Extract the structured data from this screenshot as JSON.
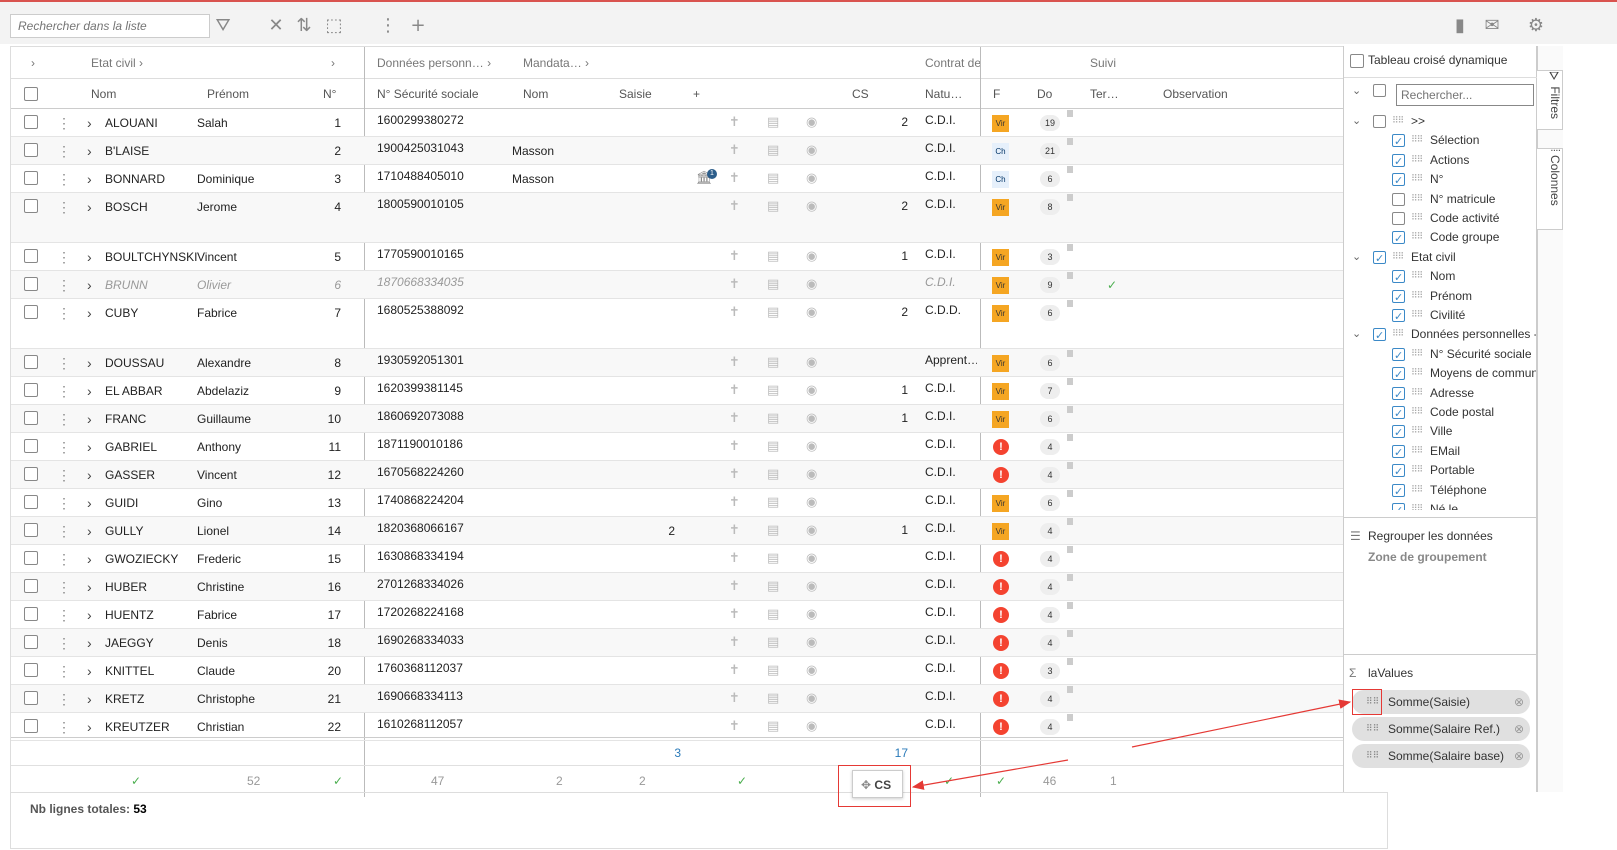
{
  "toolbar": {
    "search_placeholder": "Rechercher dans la liste"
  },
  "group_headers": {
    "etat_civil": "Etat civil",
    "donnees": "Données personn…",
    "mandata": "Mandata…",
    "contrat": "Contrat de",
    "suivi": "Suivi"
  },
  "columns": {
    "nom": "Nom",
    "prenom": "Prénom",
    "num": "N°",
    "nss": "N° Sécurité sociale",
    "nom2": "Nom",
    "saisie": "Saisie",
    "plus": "+",
    "cs": "CS",
    "nature": "Natu…",
    "f": "F",
    "do": "Do",
    "ter": "Ter…",
    "obs": "Observation"
  },
  "rows": [
    {
      "nom": "ALOUANI",
      "prenom": "Salah",
      "num": "1",
      "nss": "1600299380272",
      "mand": "",
      "saisie": "",
      "cs": "2",
      "nat": "C.D.I.",
      "f": "Vir",
      "do": "19",
      "suivi": ""
    },
    {
      "nom": "B'LAISE",
      "prenom": "",
      "num": "2",
      "nss": "1900425031043",
      "mand": "Masson",
      "saisie": "",
      "cs": "",
      "nat": "C.D.I.",
      "f": "Ch",
      "do": "21",
      "suivi": ""
    },
    {
      "nom": "BONNARD",
      "prenom": "Dominique",
      "num": "3",
      "nss": "1710488405010",
      "mand": "Masson",
      "saisie": "",
      "cs": "",
      "nat": "C.D.I.",
      "f": "Ch",
      "do": "6",
      "suivi": "",
      "bank": "1"
    },
    {
      "nom": "BOSCH",
      "prenom": "Jerome",
      "num": "4",
      "nss": "1800590010105",
      "mand": "",
      "saisie": "",
      "cs": "2",
      "nat": "C.D.I.",
      "f": "Vir",
      "do": "8",
      "suivi": ""
    },
    {
      "nom": "BOULTCHYNSKI",
      "prenom": "Vincent",
      "num": "5",
      "nss": "1770590010165",
      "mand": "",
      "saisie": "",
      "cs": "1",
      "nat": "C.D.I.",
      "f": "Vir",
      "do": "3",
      "suivi": ""
    },
    {
      "nom": "BRUNN",
      "prenom": "Olivier",
      "num": "6",
      "nss": "1870668334035",
      "mand": "",
      "saisie": "",
      "cs": "",
      "nat": "C.D.I.",
      "f": "Vir",
      "do": "9",
      "suivi": "✓",
      "muted": true
    },
    {
      "nom": "CUBY",
      "prenom": "Fabrice",
      "num": "7",
      "nss": "1680525388092",
      "mand": "",
      "saisie": "",
      "cs": "2",
      "nat": "C.D.D.",
      "f": "Vir",
      "do": "6",
      "suivi": ""
    },
    {
      "nom": "DOUSSAU",
      "prenom": "Alexandre",
      "num": "8",
      "nss": "1930592051301",
      "mand": "",
      "saisie": "",
      "cs": "",
      "nat": "Apprent…",
      "f": "Vir",
      "do": "6",
      "suivi": ""
    },
    {
      "nom": "EL ABBAR",
      "prenom": "Abdelaziz",
      "num": "9",
      "nss": "1620399381145",
      "mand": "",
      "saisie": "",
      "cs": "1",
      "nat": "C.D.I.",
      "f": "Vir",
      "do": "7",
      "suivi": ""
    },
    {
      "nom": "FRANC",
      "prenom": "Guillaume",
      "num": "10",
      "nss": "1860692073088",
      "mand": "",
      "saisie": "",
      "cs": "1",
      "nat": "C.D.I.",
      "f": "Vir",
      "do": "6",
      "suivi": ""
    },
    {
      "nom": "GABRIEL",
      "prenom": "Anthony",
      "num": "11",
      "nss": "1871190010186",
      "mand": "",
      "saisie": "",
      "cs": "",
      "nat": "C.D.I.",
      "f": "!",
      "do": "4",
      "suivi": ""
    },
    {
      "nom": "GASSER",
      "prenom": "Vincent",
      "num": "12",
      "nss": "1670568224260",
      "mand": "",
      "saisie": "",
      "cs": "",
      "nat": "C.D.I.",
      "f": "!",
      "do": "4",
      "suivi": ""
    },
    {
      "nom": "GUIDI",
      "prenom": "Gino",
      "num": "13",
      "nss": "1740868224204",
      "mand": "",
      "saisie": "",
      "cs": "",
      "nat": "C.D.I.",
      "f": "Vir",
      "do": "6",
      "suivi": ""
    },
    {
      "nom": "GULLY",
      "prenom": "Lionel",
      "num": "14",
      "nss": "1820368066167",
      "mand": "",
      "saisie": "2",
      "cs": "1",
      "nat": "C.D.I.",
      "f": "Vir",
      "do": "4",
      "suivi": ""
    },
    {
      "nom": "GWOZIECKY",
      "prenom": "Frederic",
      "num": "15",
      "nss": "1630868334194",
      "mand": "",
      "saisie": "",
      "cs": "",
      "nat": "C.D.I.",
      "f": "!",
      "do": "4",
      "suivi": ""
    },
    {
      "nom": "HUBER",
      "prenom": "Christine",
      "num": "16",
      "nss": "2701268334026",
      "mand": "",
      "saisie": "",
      "cs": "",
      "nat": "C.D.I.",
      "f": "!",
      "do": "4",
      "suivi": ""
    },
    {
      "nom": "HUENTZ",
      "prenom": "Fabrice",
      "num": "17",
      "nss": "1720268224168",
      "mand": "",
      "saisie": "",
      "cs": "",
      "nat": "C.D.I.",
      "f": "!",
      "do": "4",
      "suivi": ""
    },
    {
      "nom": "JAEGGY",
      "prenom": "Denis",
      "num": "18",
      "nss": "1690268334033",
      "mand": "",
      "saisie": "",
      "cs": "",
      "nat": "C.D.I.",
      "f": "!",
      "do": "4",
      "suivi": ""
    },
    {
      "nom": "KNITTEL",
      "prenom": "Claude",
      "num": "20",
      "nss": "1760368112037",
      "mand": "",
      "saisie": "",
      "cs": "",
      "nat": "C.D.I.",
      "f": "!",
      "do": "3",
      "suivi": ""
    },
    {
      "nom": "KRETZ",
      "prenom": "Christophe",
      "num": "21",
      "nss": "1690668334113",
      "mand": "",
      "saisie": "",
      "cs": "",
      "nat": "C.D.I.",
      "f": "!",
      "do": "4",
      "suivi": ""
    },
    {
      "nom": "KREUTZER",
      "prenom": "Christian",
      "num": "22",
      "nss": "1610268112057",
      "mand": "",
      "saisie": "",
      "cs": "",
      "nat": "C.D.I.",
      "f": "!",
      "do": "4",
      "suivi": ""
    }
  ],
  "totals": {
    "saisie": "3",
    "cs": "17"
  },
  "counts": {
    "prenom": "52",
    "nss": "47",
    "nom2": "2",
    "saisie": "2",
    "do": "46",
    "ter": "1"
  },
  "footer": {
    "label": "Nb lignes totales:",
    "value": "53"
  },
  "drag_chip": "CS",
  "side": {
    "pivot": "Tableau croisé dynamique",
    "search_placeholder": "Rechercher...",
    "tree": [
      {
        "label": ">>",
        "level": 0,
        "state": "off",
        "chev": true
      },
      {
        "label": "Sélection",
        "level": 1,
        "state": "on"
      },
      {
        "label": "Actions",
        "level": 1,
        "state": "on"
      },
      {
        "label": "N°",
        "level": 1,
        "state": "on"
      },
      {
        "label": "N° matricule",
        "level": 1,
        "state": "off"
      },
      {
        "label": "Code activité",
        "level": 1,
        "state": "off"
      },
      {
        "label": "Code groupe",
        "level": 1,
        "state": "on"
      },
      {
        "label": "Etat civil",
        "level": 0,
        "state": "on",
        "chev": true
      },
      {
        "label": "Nom",
        "level": 1,
        "state": "on"
      },
      {
        "label": "Prénom",
        "level": 1,
        "state": "on"
      },
      {
        "label": "Civilité",
        "level": 1,
        "state": "on"
      },
      {
        "label": "Données personnelles - F",
        "level": 0,
        "state": "on",
        "chev": true
      },
      {
        "label": "N° Sécurité sociale",
        "level": 1,
        "state": "on"
      },
      {
        "label": "Moyens de communi",
        "level": 1,
        "state": "on"
      },
      {
        "label": "Adresse",
        "level": 1,
        "state": "on"
      },
      {
        "label": "Code postal",
        "level": 1,
        "state": "on"
      },
      {
        "label": "Ville",
        "level": 1,
        "state": "on"
      },
      {
        "label": "EMail",
        "level": 1,
        "state": "on"
      },
      {
        "label": "Portable",
        "level": 1,
        "state": "on"
      },
      {
        "label": "Téléphone",
        "level": 1,
        "state": "on"
      },
      {
        "label": "Né le",
        "level": 1,
        "state": "on"
      }
    ],
    "group_title": "Regrouper les données",
    "group_zone": "Zone de groupement",
    "values_title": "laValues",
    "values": [
      "Somme(Saisie)",
      "Somme(Salaire Ref.)",
      "Somme(Salaire base)"
    ],
    "tab_filtres": "Filtres",
    "tab_colonnes": "Colonnes"
  }
}
